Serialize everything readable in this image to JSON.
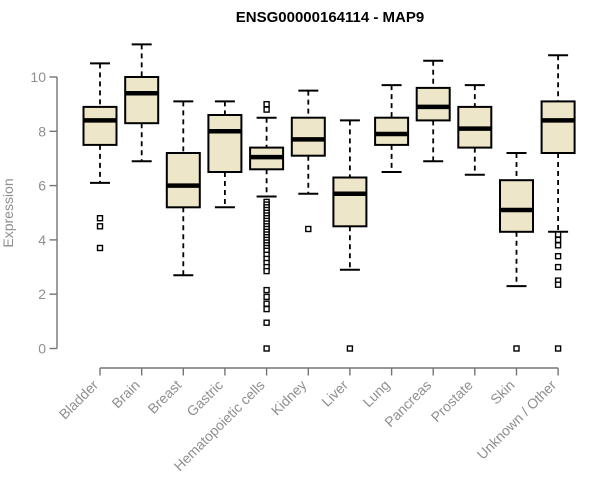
{
  "chart_data": {
    "type": "boxplot",
    "title": "ENSG00000164114 - MAP9",
    "xlabel": "",
    "ylabel": "Expression",
    "ylim": [
      0,
      10
    ],
    "yticks": [
      0,
      2,
      4,
      6,
      8,
      10
    ],
    "grid": false,
    "legend": "none",
    "categories": [
      "Bladder",
      "Brain",
      "Breast",
      "Gastric",
      "Hematopoietic cells",
      "Kidney",
      "Liver",
      "Lung",
      "Pancreas",
      "Prostate",
      "Skin",
      "Unknown / Other"
    ],
    "series": [
      {
        "category": "Bladder",
        "low": 6.1,
        "q1": 7.5,
        "median": 8.4,
        "q3": 8.9,
        "high": 10.5,
        "outliers": [
          4.8,
          4.5,
          3.7
        ]
      },
      {
        "category": "Brain",
        "low": 6.9,
        "q1": 8.3,
        "median": 9.4,
        "q3": 10.0,
        "high": 11.2,
        "outliers": []
      },
      {
        "category": "Breast",
        "low": 2.7,
        "q1": 5.2,
        "median": 6.0,
        "q3": 7.2,
        "high": 9.1,
        "outliers": []
      },
      {
        "category": "Gastric",
        "low": 5.2,
        "q1": 6.5,
        "median": 8.0,
        "q3": 8.6,
        "high": 9.1,
        "outliers": []
      },
      {
        "category": "Hematopoietic cells",
        "low": 5.6,
        "q1": 6.6,
        "median": 7.05,
        "q3": 7.4,
        "high": 8.5,
        "outliers": [
          9.0,
          8.8,
          5.4,
          5.3,
          5.2,
          5.1,
          5.0,
          4.9,
          4.8,
          4.7,
          4.6,
          4.5,
          4.4,
          4.3,
          4.2,
          4.1,
          4.0,
          3.9,
          3.8,
          3.7,
          3.6,
          3.45,
          3.3,
          3.15,
          3.0,
          2.85,
          2.15,
          1.9,
          1.65,
          1.45,
          0.95,
          0
        ]
      },
      {
        "category": "Kidney",
        "low": 5.7,
        "q1": 7.1,
        "median": 7.7,
        "q3": 8.5,
        "high": 9.5,
        "outliers": [
          4.4
        ]
      },
      {
        "category": "Liver",
        "low": 2.9,
        "q1": 4.5,
        "median": 5.7,
        "q3": 6.3,
        "high": 8.4,
        "outliers": [
          0
        ]
      },
      {
        "category": "Lung",
        "low": 6.5,
        "q1": 7.5,
        "median": 7.9,
        "q3": 8.5,
        "high": 9.7,
        "outliers": []
      },
      {
        "category": "Pancreas",
        "low": 6.9,
        "q1": 8.4,
        "median": 8.9,
        "q3": 9.6,
        "high": 10.6,
        "outliers": []
      },
      {
        "category": "Prostate",
        "low": 6.4,
        "q1": 7.4,
        "median": 8.1,
        "q3": 8.9,
        "high": 9.7,
        "outliers": []
      },
      {
        "category": "Skin",
        "low": 2.3,
        "q1": 4.3,
        "median": 5.1,
        "q3": 6.2,
        "high": 7.2,
        "outliers": [
          0
        ]
      },
      {
        "category": "Unknown / Other",
        "low": 4.3,
        "q1": 7.2,
        "median": 8.4,
        "q3": 9.1,
        "high": 10.8,
        "outliers": [
          4.2,
          4.0,
          3.8,
          3.4,
          3.0,
          2.5,
          2.35,
          0
        ]
      }
    ],
    "colors": {
      "background": "#ffffff",
      "box_fill": "#EDE6C8",
      "box_border": "#000000",
      "median": "#000000",
      "whisker": "#000000",
      "outlier_stroke": "#000000",
      "outlier_fill": "#ffffff",
      "axis_line": "#757575",
      "axis_text": "#8f8f8f",
      "title": "#000000"
    }
  }
}
